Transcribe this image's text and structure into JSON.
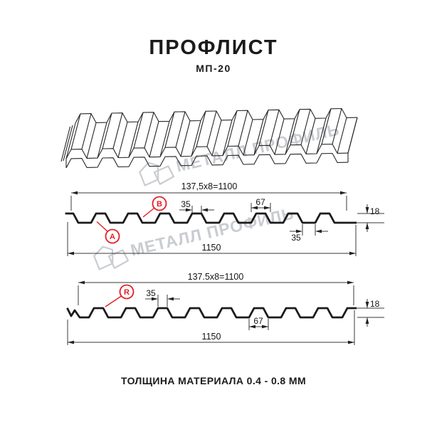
{
  "header": {
    "title": "ПРОФЛИСТ",
    "subtitle": "МП-20"
  },
  "watermark": {
    "brand": "МЕТАЛЛ ПРОФИЛЬ"
  },
  "section_b": {
    "total_width": "137,5x8=1100",
    "rib_top_width": "35",
    "rib_base_width": "67",
    "profile_height": "18",
    "valley_width": "35",
    "overall_width": "1150",
    "side_label_a": "A",
    "side_label_b": "B"
  },
  "section_r": {
    "total_width": "137.5x8=1100",
    "rib_top_width": "35",
    "rib_base_width": "67",
    "profile_height": "18",
    "overall_width": "1150",
    "side_label_r": "R"
  },
  "footer": {
    "material_thickness": "ТОЛЩИНА МАТЕРИАЛА 0.4 - 0.8 ММ"
  },
  "colors": {
    "accent_red": "#e31e24",
    "line_black": "#1b1b1b",
    "watermark_gray": "#c9ccd0"
  }
}
